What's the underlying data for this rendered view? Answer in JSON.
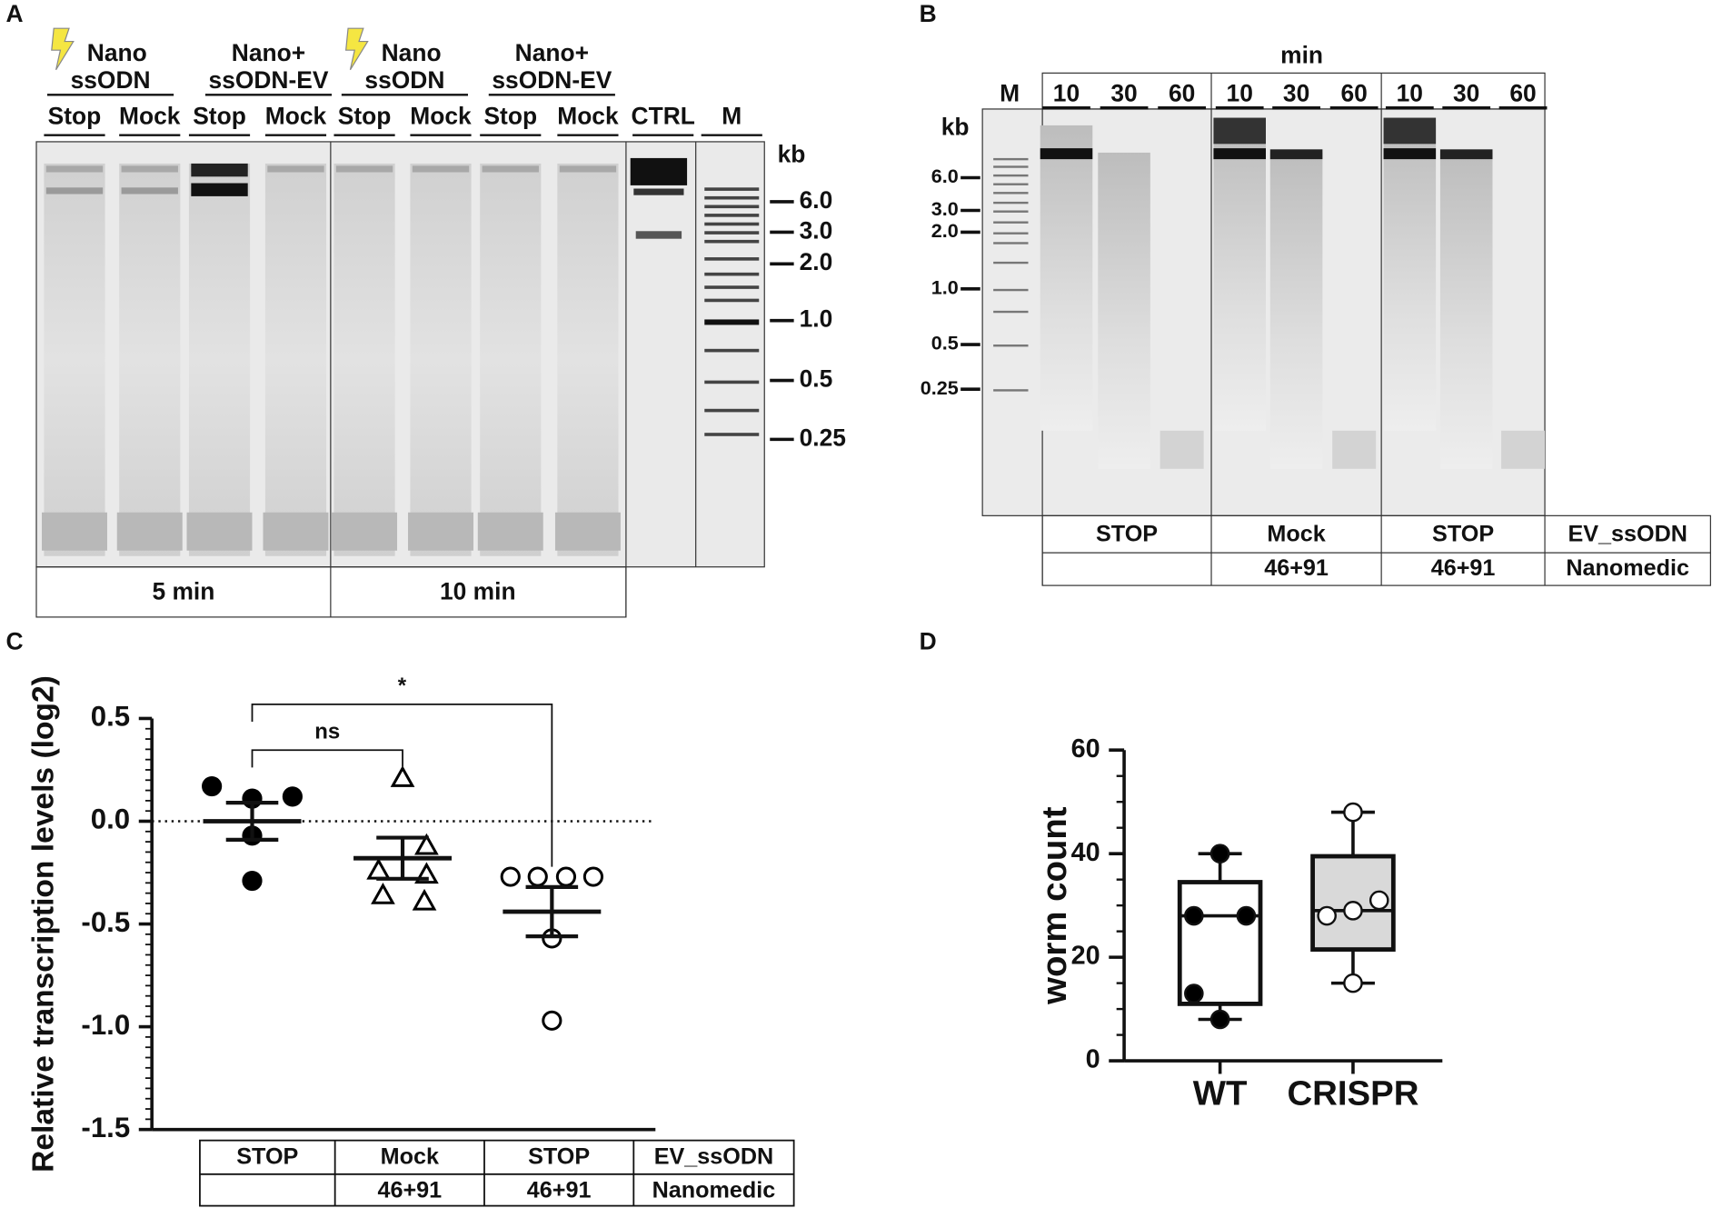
{
  "panel_a": {
    "letter": "A",
    "groups": [
      {
        "line1": "Nano",
        "line2": "ssODN"
      },
      {
        "line1": "Nano+",
        "line2": "ssODN-EV"
      },
      {
        "line1": "Nano",
        "line2": "ssODN"
      },
      {
        "line1": "Nano+",
        "line2": "ssODN-EV"
      }
    ],
    "lanes": [
      "Stop",
      "Mock",
      "Stop",
      "Mock",
      "Stop",
      "Mock",
      "Stop",
      "Mock",
      "CTRL",
      "M"
    ],
    "unit": "kb",
    "markers": [
      "6.0",
      "3.0",
      "2.0",
      "1.0",
      "0.5",
      "0.25"
    ],
    "times": [
      "5 min",
      "10 min"
    ]
  },
  "panel_b": {
    "letter": "B",
    "header": "min",
    "marker_lane": "M",
    "lanes": [
      "10",
      "30",
      "60",
      "10",
      "30",
      "60",
      "10",
      "30",
      "60"
    ],
    "unit": "kb",
    "markers": [
      "6.0",
      "3.0",
      "2.0",
      "1.0",
      "0.5",
      "0.25"
    ],
    "table": {
      "rows": [
        {
          "cells": [
            "STOP",
            "Mock",
            "STOP"
          ],
          "label": "EV_ssODN"
        },
        {
          "cells": [
            null,
            "46+91",
            "46+91"
          ],
          "label": "Nanomedic"
        }
      ]
    }
  },
  "chart_data": [
    {
      "type": "dotplot",
      "panel": "C",
      "ylabel": "Relative transcription levels (log2)",
      "ylim": [
        -1.5,
        0.5
      ],
      "yticks": [
        0.5,
        {
          "value": 0,
          "label": "0.0"
        },
        -0.5,
        {
          "value": -1,
          "label": "-1.0"
        },
        -1.5
      ],
      "reference_line": 0,
      "series": [
        {
          "marker": "filled-circle",
          "color": "#000000",
          "values": [
            0.17,
            0.11,
            0.12,
            -0.07,
            -0.29
          ],
          "mean": 0,
          "sem": 0.09
        },
        {
          "marker": "open-triangle",
          "color": "#000000",
          "values": [
            0.21,
            -0.12,
            -0.24,
            -0.26,
            -0.36,
            -0.39
          ],
          "mean": -0.18,
          "sem": 0.1
        },
        {
          "marker": "open-circle",
          "color": "#000000",
          "values": [
            -0.27,
            -0.27,
            -0.27,
            -0.27,
            -0.57,
            -0.97
          ],
          "mean": -0.44,
          "sem": 0.12
        }
      ],
      "comparisons": [
        {
          "from": 0,
          "to": 1,
          "label": "ns"
        },
        {
          "from": 0,
          "to": 2,
          "label": "*"
        }
      ],
      "table": {
        "rows": [
          {
            "cells": [
              "STOP",
              "Mock",
              "STOP"
            ],
            "label": "EV_ssODN"
          },
          {
            "cells": [
              null,
              "46+91",
              "46+91"
            ],
            "label": "Nanomedic"
          }
        ]
      }
    },
    {
      "type": "box",
      "panel": "D",
      "ylabel": "worm count",
      "ylim": [
        0,
        60
      ],
      "yticks": [
        0,
        20,
        40,
        60
      ],
      "categories": [
        "WT",
        "CRISPR"
      ],
      "boxes": [
        {
          "min": 8,
          "q1": 11,
          "median": 28,
          "q3": 34.5,
          "max": 40,
          "points": [
            40,
            28,
            28,
            13,
            8
          ],
          "fill": "#ffffff",
          "point_fill": "#000000"
        },
        {
          "min": 15,
          "q1": 21.5,
          "median": 29,
          "q3": 39.5,
          "max": 48,
          "points": [
            48,
            31,
            29,
            28,
            15
          ],
          "fill": "#d9d9d9",
          "point_fill": "#ffffff"
        }
      ]
    }
  ]
}
